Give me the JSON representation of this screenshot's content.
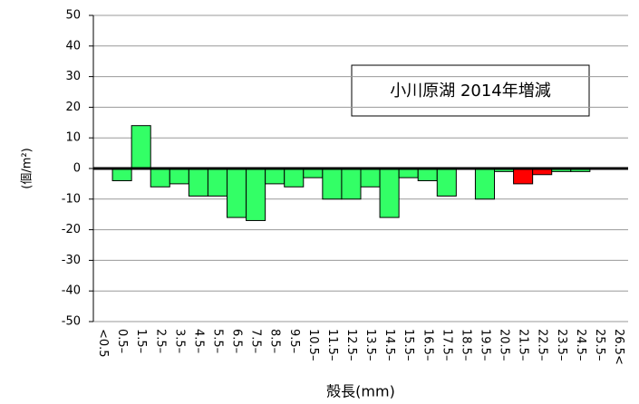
{
  "chart_data": {
    "type": "bar",
    "annotation": "小川原湖 2014年増減",
    "y_label": "(個/m²)",
    "x_label": "殻長(mm)",
    "categories": [
      "<0.5",
      "0.5–",
      "1.5–",
      "2.5–",
      "3.5–",
      "4.5–",
      "5.5–",
      "6.5–",
      "7.5–",
      "8.5–",
      "9.5–",
      "10.5–",
      "11.5–",
      "12.5–",
      "13.5–",
      "14.5–",
      "15.5–",
      "16.5–",
      "17.5–",
      "18.5–",
      "19.5–",
      "20.5–",
      "21.5–",
      "22.5–",
      "23.5–",
      "24.5–",
      "25.5–",
      "26.5<"
    ],
    "values": [
      0,
      -4,
      14,
      -6,
      -5,
      -9,
      -9,
      -16,
      -17,
      -5,
      -6,
      -3,
      -10,
      -10,
      -6,
      -16,
      -3,
      -4,
      -9,
      0,
      -10,
      -1,
      -5,
      -2,
      -1,
      -1,
      0,
      0
    ],
    "colors": [
      "#33ff66",
      "#33ff66",
      "#33ff66",
      "#33ff66",
      "#33ff66",
      "#33ff66",
      "#33ff66",
      "#33ff66",
      "#33ff66",
      "#33ff66",
      "#33ff66",
      "#33ff66",
      "#33ff66",
      "#33ff66",
      "#33ff66",
      "#33ff66",
      "#33ff66",
      "#33ff66",
      "#33ff66",
      "#33ff66",
      "#33ff66",
      "#33ff66",
      "#ff0000",
      "#ff0000",
      "#33ff66",
      "#33ff66",
      "#33ff66",
      "#33ff66"
    ],
    "ylim": [
      -50,
      50
    ],
    "yticks": [
      50,
      40,
      30,
      20,
      10,
      0,
      -10,
      -20,
      -30,
      -40,
      -50
    ],
    "grid": true
  }
}
